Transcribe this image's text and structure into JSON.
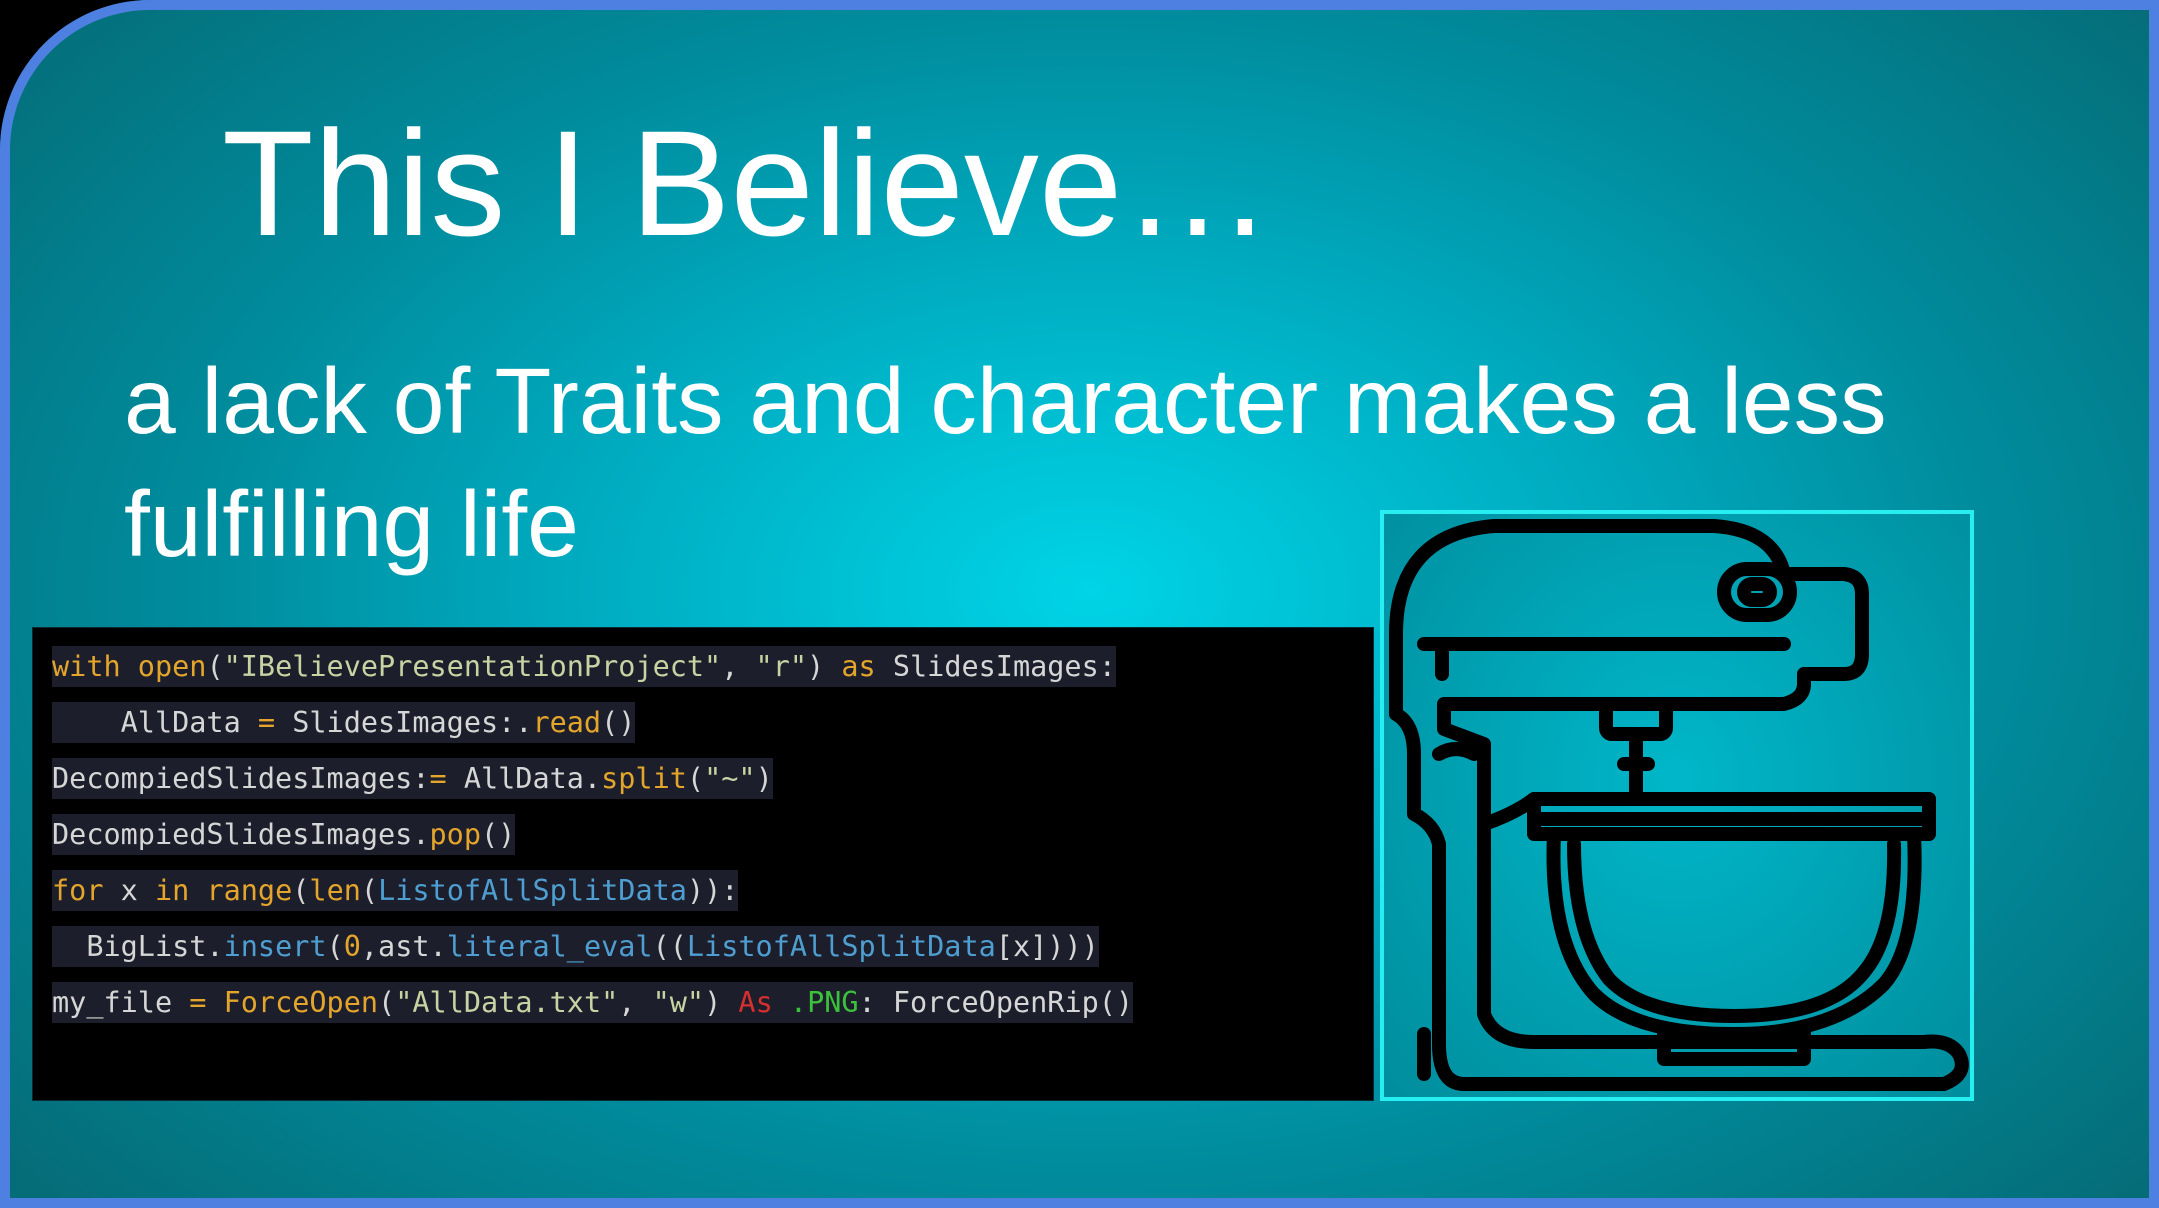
{
  "slide": {
    "title": "This I Believe…",
    "subtitle": "a lack of Traits and character makes a less fulfilling life"
  },
  "code": {
    "lines": [
      [
        {
          "t": "with ",
          "c": "kw"
        },
        {
          "t": "open",
          "c": "kw"
        },
        {
          "t": "(",
          "c": "plain"
        },
        {
          "t": "\"IBelievePresentationProject\"",
          "c": "str"
        },
        {
          "t": ", ",
          "c": "plain"
        },
        {
          "t": "\"r\"",
          "c": "str"
        },
        {
          "t": ") ",
          "c": "plain"
        },
        {
          "t": "as ",
          "c": "kw"
        },
        {
          "t": "SlidesImages:",
          "c": "plain"
        }
      ],
      [
        {
          "t": "    AllData ",
          "c": "plain"
        },
        {
          "t": "= ",
          "c": "kw"
        },
        {
          "t": "SlidesImages:.",
          "c": "plain"
        },
        {
          "t": "read",
          "c": "kw"
        },
        {
          "t": "()",
          "c": "plain"
        }
      ],
      [
        {
          "t": "DecompiedSlidesImages:",
          "c": "plain"
        },
        {
          "t": "= ",
          "c": "kw"
        },
        {
          "t": "AllData.",
          "c": "plain"
        },
        {
          "t": "split",
          "c": "kw"
        },
        {
          "t": "(",
          "c": "plain"
        },
        {
          "t": "\"~\"",
          "c": "str"
        },
        {
          "t": ")",
          "c": "plain"
        }
      ],
      [
        {
          "t": "DecompiedSlidesImages.",
          "c": "plain"
        },
        {
          "t": "pop",
          "c": "kw"
        },
        {
          "t": "()",
          "c": "plain"
        }
      ],
      [
        {
          "t": "for ",
          "c": "kw"
        },
        {
          "t": "x ",
          "c": "plain"
        },
        {
          "t": "in ",
          "c": "kw"
        },
        {
          "t": "range",
          "c": "kw"
        },
        {
          "t": "(",
          "c": "plain"
        },
        {
          "t": "len",
          "c": "kw"
        },
        {
          "t": "(",
          "c": "plain"
        },
        {
          "t": "ListofAllSplitData",
          "c": "cls"
        },
        {
          "t": ")):",
          "c": "plain"
        }
      ],
      [
        {
          "t": "  BigList.",
          "c": "plain"
        },
        {
          "t": "insert",
          "c": "cls"
        },
        {
          "t": "(",
          "c": "plain"
        },
        {
          "t": "0",
          "c": "num"
        },
        {
          "t": ",ast.",
          "c": "plain"
        },
        {
          "t": "literal_eval",
          "c": "cls"
        },
        {
          "t": "((",
          "c": "plain"
        },
        {
          "t": "ListofAllSplitData",
          "c": "cls"
        },
        {
          "t": "[x])))",
          "c": "plain"
        }
      ],
      [
        {
          "t": "my_file ",
          "c": "plain"
        },
        {
          "t": "= ",
          "c": "kw"
        },
        {
          "t": "ForceOpen",
          "c": "kw"
        },
        {
          "t": "(",
          "c": "plain"
        },
        {
          "t": "\"AllData.txt\"",
          "c": "str"
        },
        {
          "t": ", ",
          "c": "plain"
        },
        {
          "t": "\"w\"",
          "c": "str"
        },
        {
          "t": ") ",
          "c": "plain"
        },
        {
          "t": "As ",
          "c": "red"
        },
        {
          "t": ".PNG",
          "c": "grn"
        },
        {
          "t": ": ForceOpenRip()",
          "c": "plain"
        }
      ]
    ]
  },
  "icon": {
    "name": "stand-mixer-icon",
    "frame_color": "#27eef0",
    "stroke_color": "#000000"
  },
  "colors": {
    "slide_border": "#4d80e0",
    "background_center": "#00d4e6",
    "background_edge": "#056d78",
    "text": "#ffffff",
    "code_keyword": "#e3a52b",
    "code_string": "#c9d2a2",
    "code_class": "#4f9ed1"
  }
}
